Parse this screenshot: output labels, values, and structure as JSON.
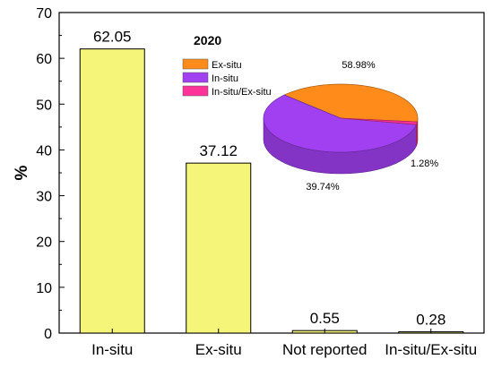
{
  "chart_data": [
    {
      "type": "bar",
      "categories": [
        "In-situ",
        "Ex-situ",
        "Not reported",
        "In-situ/Ex-situ"
      ],
      "values": [
        62.05,
        37.12,
        0.55,
        0.28
      ],
      "data_labels": [
        "62.05",
        "37.12",
        "0.55",
        "0.28"
      ],
      "ylabel": "%",
      "xlabel": "",
      "ylim": [
        0,
        70
      ],
      "yticks": [
        "0",
        "10",
        "20",
        "30",
        "40",
        "50",
        "60",
        "70"
      ],
      "bar_color": "#f5f57a",
      "grid": false
    },
    {
      "type": "pie",
      "title": "2020",
      "legend_placement": "top-left",
      "slices": [
        {
          "name": "Ex-situ",
          "value": 39.74,
          "label": "39.74%",
          "color": "#ff8c1a"
        },
        {
          "name": "In-situ",
          "value": 58.98,
          "label": "58.98%",
          "color": "#a040f0"
        },
        {
          "name": "In-situ/Ex-situ",
          "value": 1.28,
          "label": "1.28%",
          "color": "#ff3399"
        }
      ]
    }
  ]
}
